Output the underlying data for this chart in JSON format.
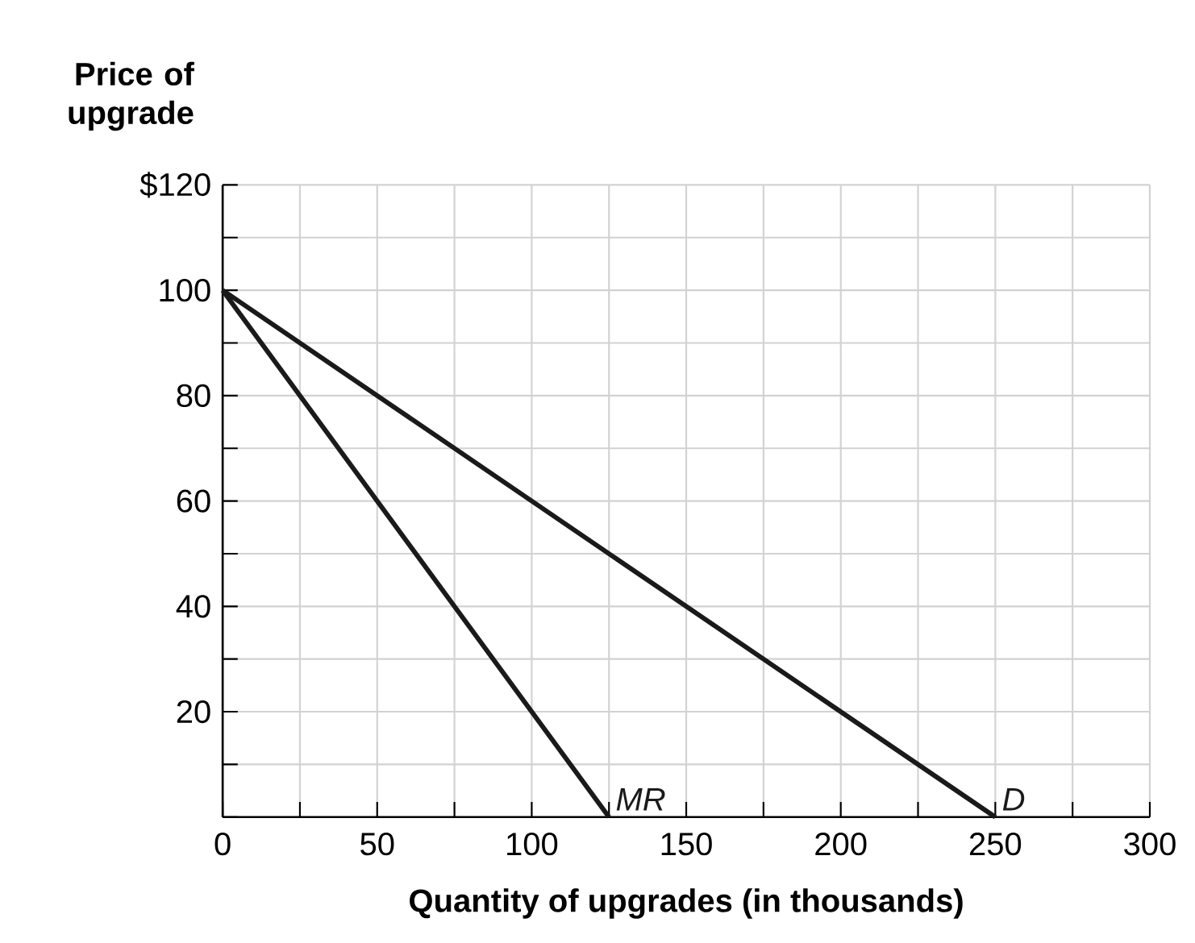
{
  "chart_data": {
    "type": "line",
    "xlabel": "Quantity of upgrades (in thousands)",
    "ylabel": "Price of upgrade",
    "xlim": [
      0,
      300
    ],
    "ylim": [
      0,
      120
    ],
    "xticks": [
      0,
      {
        "value": 25,
        "label": null
      },
      50,
      {
        "value": 75,
        "label": null
      },
      100,
      {
        "value": 125,
        "label": null
      },
      150,
      {
        "value": 175,
        "label": null
      },
      200,
      {
        "value": 225,
        "label": null
      },
      250,
      {
        "value": 275,
        "label": null
      },
      300
    ],
    "yticks": [
      {
        "value": 0,
        "label": null
      },
      {
        "value": 10,
        "label": null
      },
      20,
      {
        "value": 30,
        "label": null
      },
      40,
      {
        "value": 50,
        "label": null
      },
      60,
      {
        "value": 70,
        "label": null
      },
      80,
      {
        "value": 90,
        "label": null
      },
      100,
      {
        "value": 110,
        "label": null
      },
      {
        "value": 120,
        "label": "$120"
      }
    ],
    "grid": true,
    "series": [
      {
        "name": "MR",
        "color": "#1a1a1a",
        "x": [
          0,
          125
        ],
        "values": [
          100,
          0
        ]
      },
      {
        "name": "D",
        "color": "#1a1a1a",
        "x": [
          0,
          250
        ],
        "values": [
          100,
          0
        ]
      }
    ]
  }
}
